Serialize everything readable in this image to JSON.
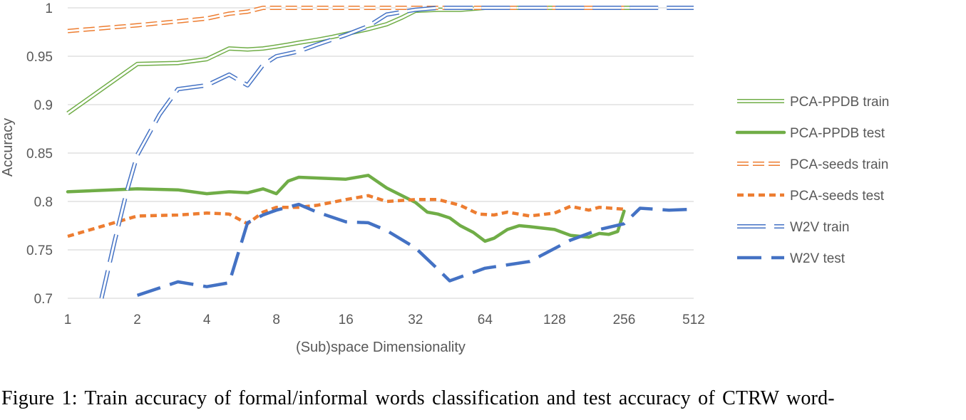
{
  "chart_data": {
    "type": "line",
    "title": "",
    "xlabel": "(Sub)space Dimensionality",
    "ylabel": "Accuracy",
    "x_scale": "log2",
    "xticks": [
      1,
      2,
      4,
      8,
      16,
      32,
      64,
      128,
      256,
      512
    ],
    "xlim": [
      1,
      512
    ],
    "ylim": [
      0.7,
      1
    ],
    "yticks": [
      0.7,
      0.75,
      0.8,
      0.85,
      0.9,
      0.95,
      1
    ],
    "ytick_labels": [
      "0.7",
      "0.75",
      "0.8",
      "0.85",
      "0.9",
      "0.95",
      "1"
    ],
    "grid": "horizontal",
    "legend_position": "right",
    "series": [
      {
        "name": "PCA-PPDB train",
        "style": "double-line",
        "color": "#70ad47",
        "x": [
          1,
          2,
          3,
          4,
          5,
          6,
          7,
          8,
          9,
          10,
          12,
          14,
          16,
          20,
          24,
          28,
          32,
          40,
          50,
          64,
          100,
          150,
          200,
          256,
          300
        ],
        "y": [
          0.891,
          0.942,
          0.943,
          0.947,
          0.958,
          0.957,
          0.958,
          0.96,
          0.962,
          0.964,
          0.967,
          0.97,
          0.973,
          0.978,
          0.983,
          0.99,
          0.997,
          0.998,
          0.998,
          1,
          1,
          1,
          1,
          1,
          1
        ]
      },
      {
        "name": "PCA-PPDB test",
        "style": "thick-solid",
        "color": "#70ad47",
        "x": [
          1,
          2,
          3,
          4,
          5,
          6,
          7,
          8,
          9,
          10,
          16,
          20,
          24,
          32,
          36,
          40,
          45,
          50,
          57,
          64,
          70,
          80,
          90,
          100,
          128,
          150,
          180,
          200,
          220,
          240,
          256
        ],
        "y": [
          0.81,
          0.813,
          0.812,
          0.808,
          0.81,
          0.809,
          0.813,
          0.808,
          0.821,
          0.825,
          0.823,
          0.827,
          0.814,
          0.799,
          0.789,
          0.787,
          0.783,
          0.775,
          0.768,
          0.759,
          0.762,
          0.771,
          0.775,
          0.774,
          0.771,
          0.765,
          0.763,
          0.767,
          0.766,
          0.769,
          0.79
        ]
      },
      {
        "name": "PCA-seeds train",
        "style": "double-dash",
        "color": "#ed7d31",
        "x": [
          1,
          2,
          3,
          4,
          5,
          6,
          7,
          8,
          10,
          16,
          20,
          32,
          64,
          128,
          256
        ],
        "y": [
          0.976,
          0.982,
          0.986,
          0.989,
          0.994,
          0.996,
          1,
          1,
          1,
          1,
          1,
          1,
          1,
          1,
          1
        ]
      },
      {
        "name": "PCA-seeds test",
        "style": "thick-dash",
        "color": "#ed7d31",
        "x": [
          1,
          2,
          3,
          4,
          5,
          6,
          7,
          8,
          10,
          12,
          16,
          20,
          24,
          32,
          40,
          50,
          60,
          70,
          80,
          100,
          128,
          150,
          180,
          200,
          256
        ],
        "y": [
          0.764,
          0.785,
          0.786,
          0.788,
          0.787,
          0.777,
          0.789,
          0.794,
          0.794,
          0.796,
          0.802,
          0.806,
          0.8,
          0.802,
          0.802,
          0.796,
          0.787,
          0.786,
          0.789,
          0.785,
          0.788,
          0.795,
          0.791,
          0.794,
          0.792
        ]
      },
      {
        "name": "W2V train",
        "style": "double-longdash",
        "color": "#4472c4",
        "x": [
          1.4,
          1.6,
          1.8,
          2,
          2.5,
          3,
          4,
          5,
          6,
          7,
          8,
          10,
          12,
          16,
          20,
          24,
          32,
          40,
          64,
          128,
          256,
          512
        ],
        "y": [
          0.7,
          0.76,
          0.81,
          0.848,
          0.89,
          0.916,
          0.92,
          0.931,
          0.92,
          0.941,
          0.95,
          0.955,
          0.962,
          0.972,
          0.981,
          0.993,
          0.998,
          1,
          1,
          1,
          1,
          1
        ]
      },
      {
        "name": "W2V test",
        "style": "thick-longdash",
        "color": "#4472c4",
        "x": [
          2,
          3,
          4,
          5,
          6,
          7,
          8,
          10,
          12,
          16,
          20,
          24,
          32,
          40,
          45,
          64,
          100,
          150,
          200,
          256,
          300,
          400,
          512
        ],
        "y": [
          0.703,
          0.717,
          0.712,
          0.716,
          0.778,
          0.786,
          0.791,
          0.797,
          0.789,
          0.779,
          0.778,
          0.77,
          0.752,
          0.73,
          0.718,
          0.731,
          0.738,
          0.76,
          0.771,
          0.777,
          0.793,
          0.791,
          0.792
        ]
      }
    ]
  },
  "caption": "Figure 1:  Train accuracy of formal/informal words classification and test accuracy of CTRW word-"
}
